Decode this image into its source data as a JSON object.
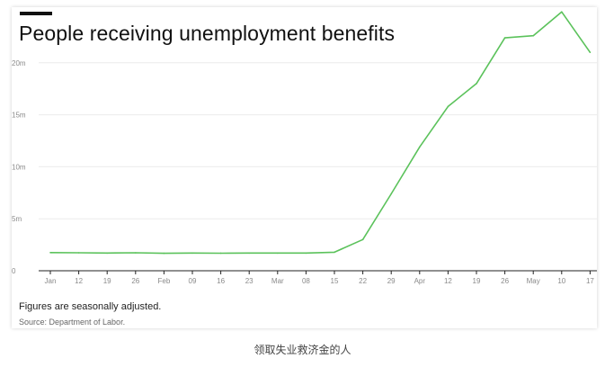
{
  "colors": {
    "line": "#5bc25b",
    "grid": "#ececec",
    "axis": "#222222",
    "accent_bar": "#111111"
  },
  "footnote": "Figures are seasonally adjusted.",
  "source": "Source: Department of Labor.",
  "caption": "领取失业救济金的人",
  "chart_data": {
    "type": "line",
    "title": "People receiving unemployment benefits",
    "xlabel": "",
    "ylabel": "",
    "grid": true,
    "ylim": [
      0,
      25000000
    ],
    "yticks": [
      0,
      5000000,
      10000000,
      15000000,
      20000000
    ],
    "ytick_labels": [
      "0",
      "5m",
      "10m",
      "15m",
      "20m"
    ],
    "x": [
      "Jan",
      "12",
      "19",
      "26",
      "Feb",
      "09",
      "16",
      "23",
      "Mar",
      "08",
      "15",
      "22",
      "29",
      "Apr",
      "12",
      "19",
      "26",
      "May",
      "10",
      "17"
    ],
    "series": [
      {
        "values": [
          1750000,
          1730000,
          1700000,
          1730000,
          1680000,
          1700000,
          1690000,
          1700000,
          1700000,
          1700000,
          1780000,
          3000000,
          7400000,
          11900000,
          15800000,
          18000000,
          22400000,
          22600000,
          24900000,
          21000000
        ]
      }
    ]
  }
}
